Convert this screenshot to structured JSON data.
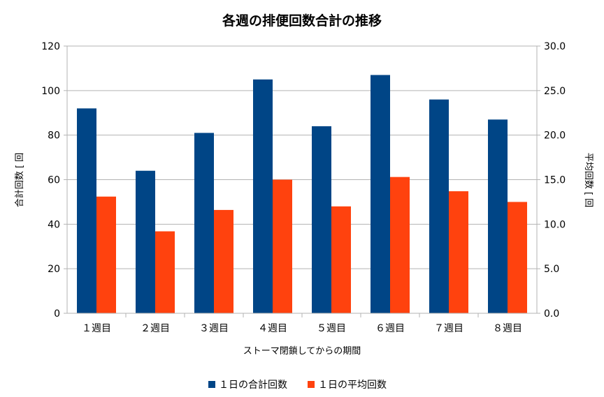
{
  "chart_data": {
    "type": "bar",
    "title": "各週の排便回数合計の推移",
    "xlabel": "ストーマ閉鎖してからの期間",
    "ylabel": "合計回数 [ 回",
    "y2label": "平均回数 [ 回",
    "categories": [
      "１週目",
      "２週目",
      "３週目",
      "４週目",
      "５週目",
      "６週目",
      "７週目",
      "８週目"
    ],
    "ylim": [
      0,
      120
    ],
    "y2lim": [
      0,
      30
    ],
    "yticks": [
      "0",
      "20",
      "40",
      "60",
      "80",
      "100",
      "120"
    ],
    "y2ticks": [
      "0.0",
      "5.0",
      "10.0",
      "15.0",
      "20.0",
      "25.0",
      "30.0"
    ],
    "grid": true,
    "legend_position": "bottom",
    "series": [
      {
        "name": "１日の合計回数",
        "axis": "left",
        "color": "#004586",
        "values": [
          92,
          64,
          81,
          105,
          84,
          107,
          96,
          87
        ]
      },
      {
        "name": "１日の平均回数",
        "axis": "right",
        "color": "#ff420e",
        "values": [
          13.1,
          9.2,
          11.6,
          15.0,
          12.0,
          15.3,
          13.7,
          12.5
        ]
      }
    ]
  }
}
